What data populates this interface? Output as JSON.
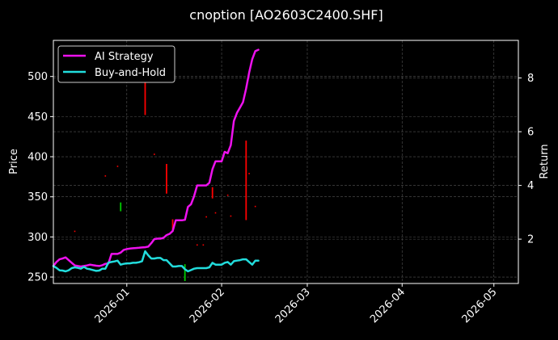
{
  "chart_data": {
    "type": "line",
    "title": "cnoption [AO2603C2400.SHF]",
    "ylabel": "Price",
    "y2label": "Return",
    "xlim": [
      "2025-12-08",
      "2026-05-09"
    ],
    "ylim": [
      242,
      545
    ],
    "y2lim": [
      0.35,
      9.4
    ],
    "grid": true,
    "legend_position": "upper-left",
    "x_ticks": [
      {
        "label": "2026-01",
        "date": "2026-01-01"
      },
      {
        "label": "2026-02",
        "date": "2026-02-01"
      },
      {
        "label": "2026-03",
        "date": "2026-03-01"
      },
      {
        "label": "2026-04",
        "date": "2026-04-01"
      },
      {
        "label": "2026-05",
        "date": "2026-05-01"
      }
    ],
    "y_ticks": [
      250,
      300,
      350,
      400,
      450,
      500
    ],
    "y2_ticks": [
      2,
      4,
      6,
      8
    ],
    "series": [
      {
        "name": "AI Strategy",
        "axis": "right",
        "color": "#ee11ee",
        "points": [
          [
            "2025-12-08",
            1.0
          ],
          [
            "2025-12-09",
            1.15
          ],
          [
            "2025-12-10",
            1.25
          ],
          [
            "2025-12-11",
            1.28
          ],
          [
            "2025-12-12",
            1.32
          ],
          [
            "2025-12-13",
            1.22
          ],
          [
            "2025-12-14",
            1.12
          ],
          [
            "2025-12-15",
            1.02
          ],
          [
            "2025-12-16",
            1.0
          ],
          [
            "2025-12-17",
            0.98
          ],
          [
            "2025-12-18",
            1.0
          ],
          [
            "2025-12-19",
            1.02
          ],
          [
            "2025-12-20",
            1.05
          ],
          [
            "2025-12-21",
            1.03
          ],
          [
            "2025-12-22",
            1.01
          ],
          [
            "2025-12-23",
            1.0
          ],
          [
            "2025-12-24",
            1.03
          ],
          [
            "2025-12-25",
            1.08
          ],
          [
            "2025-12-26",
            1.1
          ],
          [
            "2025-12-27",
            1.45
          ],
          [
            "2025-12-28",
            1.45
          ],
          [
            "2025-12-29",
            1.45
          ],
          [
            "2025-12-30",
            1.5
          ],
          [
            "2025-12-31",
            1.6
          ],
          [
            "2026-01-01",
            1.63
          ],
          [
            "2026-01-02",
            1.65
          ],
          [
            "2026-01-03",
            1.66
          ],
          [
            "2026-01-04",
            1.67
          ],
          [
            "2026-01-05",
            1.68
          ],
          [
            "2026-01-06",
            1.69
          ],
          [
            "2026-01-07",
            1.7
          ],
          [
            "2026-01-08",
            1.72
          ],
          [
            "2026-01-09",
            1.85
          ],
          [
            "2026-01-10",
            2.0
          ],
          [
            "2026-01-11",
            2.02
          ],
          [
            "2026-01-12",
            2.02
          ],
          [
            "2026-01-13",
            2.05
          ],
          [
            "2026-01-14",
            2.15
          ],
          [
            "2026-01-15",
            2.2
          ],
          [
            "2026-01-16",
            2.3
          ],
          [
            "2026-01-17",
            2.7
          ],
          [
            "2026-01-18",
            2.7
          ],
          [
            "2026-01-19",
            2.7
          ],
          [
            "2026-01-20",
            2.72
          ],
          [
            "2026-01-21",
            3.2
          ],
          [
            "2026-01-22",
            3.3
          ],
          [
            "2026-01-23",
            3.6
          ],
          [
            "2026-01-24",
            4.0
          ],
          [
            "2026-01-25",
            4.0
          ],
          [
            "2026-01-26",
            4.0
          ],
          [
            "2026-01-27",
            4.0
          ],
          [
            "2026-01-28",
            4.1
          ],
          [
            "2026-01-29",
            4.6
          ],
          [
            "2026-01-30",
            4.9
          ],
          [
            "2026-01-31",
            4.9
          ],
          [
            "2026-02-01",
            4.9
          ],
          [
            "2026-02-02",
            5.25
          ],
          [
            "2026-02-03",
            5.2
          ],
          [
            "2026-02-04",
            5.5
          ],
          [
            "2026-02-05",
            6.4
          ],
          [
            "2026-02-06",
            6.7
          ],
          [
            "2026-02-07",
            6.9
          ],
          [
            "2026-02-08",
            7.1
          ],
          [
            "2026-02-09",
            7.6
          ],
          [
            "2026-02-10",
            8.2
          ],
          [
            "2026-02-11",
            8.7
          ],
          [
            "2026-02-12",
            9.0
          ],
          [
            "2026-02-13",
            9.05
          ]
        ]
      },
      {
        "name": "Buy-and-Hold",
        "axis": "right",
        "color": "#22dddd",
        "points": [
          [
            "2025-12-08",
            1.0
          ],
          [
            "2025-12-09",
            0.93
          ],
          [
            "2025-12-10",
            0.84
          ],
          [
            "2025-12-11",
            0.83
          ],
          [
            "2025-12-12",
            0.8
          ],
          [
            "2025-12-13",
            0.84
          ],
          [
            "2025-12-14",
            0.92
          ],
          [
            "2025-12-15",
            0.95
          ],
          [
            "2025-12-16",
            0.93
          ],
          [
            "2025-12-17",
            0.9
          ],
          [
            "2025-12-18",
            0.97
          ],
          [
            "2025-12-19",
            0.9
          ],
          [
            "2025-12-20",
            0.88
          ],
          [
            "2025-12-21",
            0.85
          ],
          [
            "2025-12-22",
            0.82
          ],
          [
            "2025-12-23",
            0.83
          ],
          [
            "2025-12-24",
            0.9
          ],
          [
            "2025-12-25",
            0.9
          ],
          [
            "2025-12-26",
            1.13
          ],
          [
            "2025-12-27",
            1.15
          ],
          [
            "2025-12-28",
            1.17
          ],
          [
            "2025-12-29",
            1.2
          ],
          [
            "2025-12-30",
            1.05
          ],
          [
            "2025-12-31",
            1.08
          ],
          [
            "2026-01-01",
            1.1
          ],
          [
            "2026-01-02",
            1.1
          ],
          [
            "2026-01-03",
            1.12
          ],
          [
            "2026-01-04",
            1.12
          ],
          [
            "2026-01-05",
            1.14
          ],
          [
            "2026-01-06",
            1.18
          ],
          [
            "2026-01-07",
            1.55
          ],
          [
            "2026-01-08",
            1.4
          ],
          [
            "2026-01-09",
            1.28
          ],
          [
            "2026-01-10",
            1.28
          ],
          [
            "2026-01-11",
            1.3
          ],
          [
            "2026-01-12",
            1.3
          ],
          [
            "2026-01-13",
            1.22
          ],
          [
            "2026-01-14",
            1.22
          ],
          [
            "2026-01-15",
            1.1
          ],
          [
            "2026-01-16",
            0.98
          ],
          [
            "2026-01-17",
            0.98
          ],
          [
            "2026-01-18",
            1.0
          ],
          [
            "2026-01-19",
            1.0
          ],
          [
            "2026-01-20",
            0.88
          ],
          [
            "2026-01-21",
            0.8
          ],
          [
            "2026-01-22",
            0.85
          ],
          [
            "2026-01-23",
            0.9
          ],
          [
            "2026-01-24",
            0.92
          ],
          [
            "2026-01-25",
            0.92
          ],
          [
            "2026-01-26",
            0.92
          ],
          [
            "2026-01-27",
            0.92
          ],
          [
            "2026-01-28",
            0.95
          ],
          [
            "2026-01-29",
            1.12
          ],
          [
            "2026-01-30",
            1.05
          ],
          [
            "2026-01-31",
            1.05
          ],
          [
            "2026-02-01",
            1.05
          ],
          [
            "2026-02-02",
            1.12
          ],
          [
            "2026-02-03",
            1.15
          ],
          [
            "2026-02-04",
            1.05
          ],
          [
            "2026-02-05",
            1.18
          ],
          [
            "2026-02-06",
            1.2
          ],
          [
            "2026-02-07",
            1.22
          ],
          [
            "2026-02-08",
            1.25
          ],
          [
            "2026-02-09",
            1.25
          ],
          [
            "2026-02-10",
            1.15
          ],
          [
            "2026-02-11",
            1.05
          ],
          [
            "2026-02-12",
            1.2
          ],
          [
            "2026-02-13",
            1.2
          ]
        ]
      }
    ],
    "candles": [
      {
        "date": "2026-01-07",
        "low": 452,
        "high": 498,
        "color": "#ff0000"
      },
      {
        "date": "2026-01-14",
        "low": 354,
        "high": 391,
        "color": "#ff0000"
      },
      {
        "date": "2026-01-16",
        "low": 308,
        "high": 322,
        "color": "#ff0000"
      },
      {
        "date": "2026-01-29",
        "low": 348,
        "high": 362,
        "color": "#ff0000"
      },
      {
        "date": "2026-02-09",
        "low": 321,
        "high": 420,
        "color": "#ff0000"
      },
      {
        "date": "2025-12-30",
        "low": 332,
        "high": 343,
        "color": "#00cc00"
      },
      {
        "date": "2026-01-20",
        "low": 245,
        "high": 266,
        "color": "#00cc00"
      }
    ],
    "dots": [
      {
        "date": "2025-12-15",
        "value": 307,
        "color": "#ff0000"
      },
      {
        "date": "2025-12-25",
        "value": 376,
        "color": "#ff0000"
      },
      {
        "date": "2025-12-29",
        "value": 388,
        "color": "#ff0000"
      },
      {
        "date": "2026-01-10",
        "value": 403,
        "color": "#ff0000"
      },
      {
        "date": "2026-01-24",
        "value": 290,
        "color": "#ff0000"
      },
      {
        "date": "2026-01-26",
        "value": 290,
        "color": "#ff0000"
      },
      {
        "date": "2026-01-27",
        "value": 325,
        "color": "#ff0000"
      },
      {
        "date": "2026-01-30",
        "value": 330,
        "color": "#ff0000"
      },
      {
        "date": "2026-02-04",
        "value": 326,
        "color": "#ff0000"
      },
      {
        "date": "2026-02-03",
        "value": 352,
        "color": "#ff0000"
      },
      {
        "date": "2026-02-10",
        "value": 379,
        "color": "#ff0000"
      },
      {
        "date": "2026-02-12",
        "value": 338,
        "color": "#ff0000"
      }
    ]
  }
}
